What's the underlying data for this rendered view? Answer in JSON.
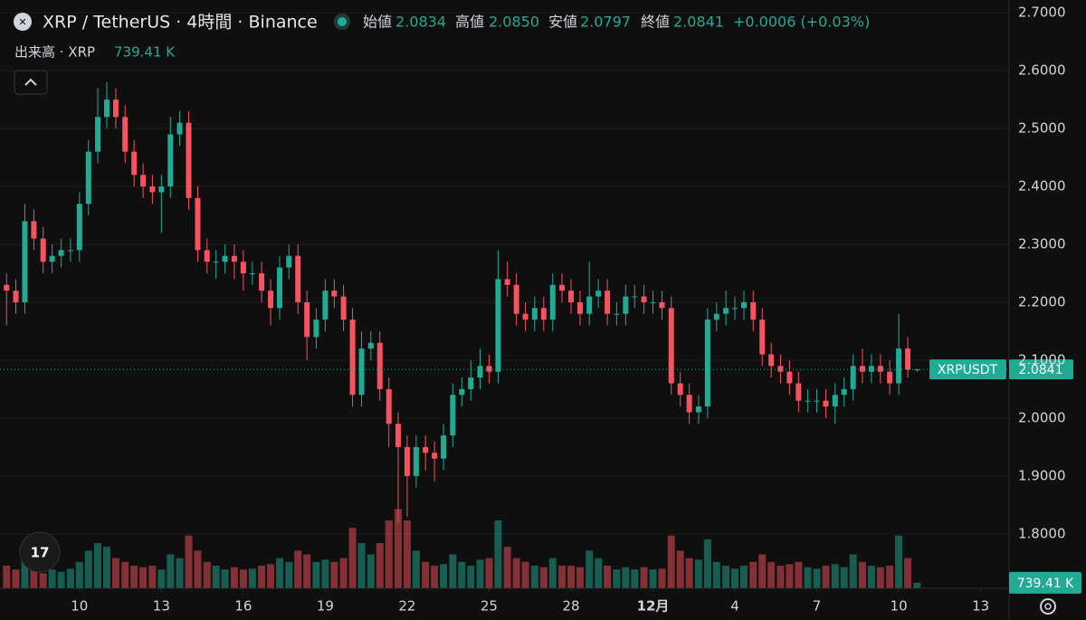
{
  "chart_data": {
    "type": "candlestick",
    "title": "XRP / TetherUS · 4時間 · Binance",
    "legend": {
      "open_label": "始値",
      "open": "2.0834",
      "high_label": "高値",
      "high": "2.0850",
      "low_label": "安値",
      "low": "2.0797",
      "close_label": "終値",
      "close": "2.0841",
      "change": "+0.0006 (+0.03%)"
    },
    "volume_legend": {
      "label": "出来高 · XRP",
      "value": "739.41 K"
    },
    "price_tag": {
      "symbol": "XRPUSDT",
      "value": "2.0841"
    },
    "volume_tag": "739.41 K",
    "up_color": "#22ab94",
    "down_color": "#f7525f",
    "x": [
      7.33,
      7.67,
      8,
      8.33,
      8.67,
      9,
      9.33,
      9.67,
      10,
      10.33,
      10.67,
      11,
      11.33,
      11.67,
      12,
      12.33,
      12.67,
      13,
      13.33,
      13.67,
      14,
      14.33,
      14.67,
      15,
      15.33,
      15.67,
      16,
      16.33,
      16.67,
      17,
      17.33,
      17.67,
      18,
      18.33,
      18.67,
      19,
      19.33,
      19.67,
      20,
      20.33,
      20.67,
      21,
      21.33,
      21.67,
      22,
      22.33,
      22.67,
      23,
      23.33,
      23.67,
      24,
      24.33,
      24.67,
      25,
      25.33,
      25.67,
      26,
      26.33,
      26.67,
      27,
      27.33,
      27.67,
      28,
      28.33,
      28.67,
      29,
      29.33,
      29.67,
      30,
      30.33,
      30.67,
      31,
      31.33,
      31.67,
      32,
      32.33,
      32.67,
      33,
      33.33,
      33.67,
      34,
      34.33,
      34.67,
      35,
      35.33,
      35.67,
      36,
      36.33,
      36.67,
      37,
      37.33,
      37.67,
      38,
      38.33,
      38.67,
      39,
      39.33,
      39.67,
      40,
      40.33,
      40.67
    ],
    "open": [
      2.23,
      2.22,
      2.2,
      2.34,
      2.31,
      2.27,
      2.28,
      2.29,
      2.29,
      2.37,
      2.46,
      2.52,
      2.55,
      2.52,
      2.46,
      2.42,
      2.4,
      2.39,
      2.4,
      2.49,
      2.51,
      2.38,
      2.29,
      2.27,
      2.27,
      2.28,
      2.27,
      2.25,
      2.25,
      2.22,
      2.19,
      2.26,
      2.28,
      2.2,
      2.14,
      2.17,
      2.22,
      2.21,
      2.17,
      2.04,
      2.12,
      2.13,
      2.05,
      1.99,
      1.95,
      1.9,
      1.95,
      1.94,
      1.93,
      1.97,
      2.04,
      2.05,
      2.07,
      2.09,
      2.08,
      2.24,
      2.23,
      2.18,
      2.17,
      2.19,
      2.17,
      2.23,
      2.22,
      2.2,
      2.18,
      2.21,
      2.22,
      2.18,
      2.18,
      2.21,
      2.21,
      2.2,
      2.2,
      2.19,
      2.06,
      2.04,
      2.01,
      2.02,
      2.17,
      2.18,
      2.19,
      2.19,
      2.2,
      2.17,
      2.11,
      2.09,
      2.08,
      2.06,
      2.03,
      2.03,
      2.03,
      2.02,
      2.04,
      2.05,
      2.09,
      2.08,
      2.09,
      2.08,
      2.06,
      2.12,
      2.0834
    ],
    "high": [
      2.25,
      2.24,
      2.37,
      2.36,
      2.33,
      2.3,
      2.31,
      2.31,
      2.39,
      2.48,
      2.57,
      2.58,
      2.57,
      2.54,
      2.48,
      2.44,
      2.42,
      2.42,
      2.52,
      2.53,
      2.53,
      2.4,
      2.31,
      2.29,
      2.3,
      2.3,
      2.29,
      2.27,
      2.27,
      2.24,
      2.28,
      2.3,
      2.3,
      2.22,
      2.19,
      2.24,
      2.24,
      2.23,
      2.19,
      2.15,
      2.15,
      2.15,
      2.07,
      2.01,
      1.97,
      1.97,
      1.97,
      1.96,
      1.99,
      2.06,
      2.07,
      2.1,
      2.12,
      2.11,
      2.29,
      2.27,
      2.25,
      2.2,
      2.21,
      2.21,
      2.25,
      2.25,
      2.24,
      2.22,
      2.27,
      2.24,
      2.24,
      2.2,
      2.23,
      2.23,
      2.23,
      2.22,
      2.22,
      2.21,
      2.08,
      2.06,
      2.04,
      2.19,
      2.2,
      2.22,
      2.21,
      2.22,
      2.22,
      2.19,
      2.13,
      2.11,
      2.1,
      2.08,
      2.05,
      2.05,
      2.05,
      2.06,
      2.07,
      2.11,
      2.12,
      2.11,
      2.11,
      2.1,
      2.18,
      2.14,
      2.085
    ],
    "low": [
      2.16,
      2.18,
      2.18,
      2.29,
      2.25,
      2.25,
      2.26,
      2.27,
      2.27,
      2.35,
      2.44,
      2.5,
      2.5,
      2.44,
      2.4,
      2.38,
      2.37,
      2.32,
      2.38,
      2.47,
      2.36,
      2.27,
      2.25,
      2.24,
      2.25,
      2.24,
      2.22,
      2.23,
      2.2,
      2.16,
      2.17,
      2.24,
      2.18,
      2.1,
      2.12,
      2.15,
      2.19,
      2.15,
      2.02,
      2.02,
      2.1,
      2.03,
      1.95,
      1.82,
      1.83,
      1.88,
      1.91,
      1.89,
      1.91,
      1.95,
      2.02,
      2.03,
      2.05,
      2.06,
      2.06,
      2.21,
      2.16,
      2.15,
      2.15,
      2.15,
      2.15,
      2.2,
      2.18,
      2.16,
      2.16,
      2.19,
      2.16,
      2.16,
      2.16,
      2.19,
      2.18,
      2.18,
      2.17,
      2.04,
      2.02,
      1.99,
      1.99,
      2.0,
      2.15,
      2.16,
      2.17,
      2.17,
      2.15,
      2.09,
      2.07,
      2.06,
      2.04,
      2.01,
      2.01,
      2.01,
      2.0,
      1.99,
      2.02,
      2.03,
      2.06,
      2.06,
      2.06,
      2.04,
      2.04,
      2.07,
      2.0797
    ],
    "close": [
      2.22,
      2.2,
      2.34,
      2.31,
      2.27,
      2.28,
      2.29,
      2.29,
      2.37,
      2.46,
      2.52,
      2.55,
      2.52,
      2.46,
      2.42,
      2.4,
      2.39,
      2.4,
      2.49,
      2.51,
      2.38,
      2.29,
      2.27,
      2.27,
      2.28,
      2.27,
      2.25,
      2.25,
      2.22,
      2.19,
      2.26,
      2.28,
      2.2,
      2.14,
      2.17,
      2.22,
      2.21,
      2.17,
      2.04,
      2.12,
      2.13,
      2.05,
      1.99,
      1.95,
      1.9,
      1.95,
      1.94,
      1.93,
      1.97,
      2.04,
      2.05,
      2.07,
      2.09,
      2.08,
      2.24,
      2.23,
      2.18,
      2.17,
      2.19,
      2.17,
      2.23,
      2.22,
      2.2,
      2.18,
      2.21,
      2.22,
      2.18,
      2.18,
      2.21,
      2.21,
      2.2,
      2.2,
      2.19,
      2.06,
      2.04,
      2.01,
      2.02,
      2.17,
      2.18,
      2.19,
      2.19,
      2.2,
      2.17,
      2.11,
      2.09,
      2.08,
      2.06,
      2.03,
      2.03,
      2.03,
      2.02,
      2.04,
      2.05,
      2.09,
      2.08,
      2.09,
      2.08,
      2.06,
      2.12,
      2.0834,
      2.0841
    ],
    "volume": [
      3000,
      2500,
      4500,
      3000,
      2000,
      2500,
      2200,
      2600,
      3500,
      5000,
      6000,
      5500,
      4000,
      3500,
      3000,
      2800,
      3000,
      2500,
      4500,
      4000,
      7000,
      5000,
      3500,
      3000,
      2500,
      2800,
      2500,
      2600,
      3000,
      3200,
      4000,
      3500,
      5000,
      4500,
      3500,
      3800,
      3500,
      4000,
      8000,
      6000,
      4500,
      6000,
      9000,
      10500,
      9000,
      5000,
      3500,
      3000,
      3200,
      4500,
      3500,
      3000,
      3800,
      4000,
      9000,
      5500,
      4000,
      3500,
      3000,
      2800,
      4000,
      3000,
      3000,
      2800,
      5000,
      4000,
      3000,
      2500,
      2800,
      2500,
      2800,
      2500,
      2600,
      7000,
      5000,
      4000,
      3800,
      6500,
      3500,
      3000,
      2600,
      3000,
      3500,
      4500,
      3500,
      3000,
      3200,
      3500,
      2800,
      2600,
      3000,
      3200,
      2800,
      4500,
      3500,
      3000,
      2800,
      3000,
      7000,
      4000,
      739.41
    ],
    "volume_lim": [
      0,
      12000
    ],
    "xlim": [
      7.09,
      44.04
    ],
    "xticks": [
      10,
      13,
      16,
      19,
      22,
      25,
      28,
      {
        "value": 31,
        "label": "12月"
      },
      {
        "value": 34,
        "label": "4"
      },
      {
        "value": 37,
        "label": "7"
      },
      {
        "value": 40,
        "label": "10"
      },
      {
        "value": 43,
        "label": "13"
      }
    ],
    "ylim": [
      1.706,
      2.722
    ],
    "yticks": [
      {
        "value": 1.8,
        "label": "1.8000"
      },
      {
        "value": 1.9,
        "label": "1.9000"
      },
      {
        "value": 2.0,
        "label": "2.0000"
      },
      {
        "value": 2.1,
        "label": "2.1000"
      },
      {
        "value": 2.2,
        "label": "2.2000"
      },
      {
        "value": 2.3,
        "label": "2.3000"
      },
      {
        "value": 2.4,
        "label": "2.4000"
      },
      {
        "value": 2.5,
        "label": "2.5000"
      },
      {
        "value": 2.6,
        "label": "2.6000"
      },
      {
        "value": 2.7,
        "label": "2.7000"
      }
    ],
    "grid": true
  }
}
